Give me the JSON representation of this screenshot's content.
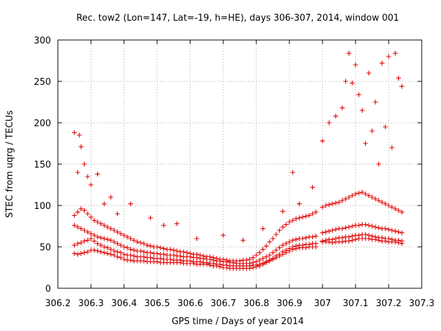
{
  "chart_data": {
    "type": "scatter",
    "title": "Rec. tow2 (Lon=147, Lat=-19, h=HE), days 306-307, 2014, window 001",
    "xlabel": "GPS time / Days of year 2014",
    "ylabel": "STEC from uqrg / TECUs",
    "xlim": [
      306.2,
      307.3
    ],
    "ylim": [
      0,
      300
    ],
    "xticks": [
      "306.2",
      "306.3",
      "306.4",
      "306.5",
      "306.6",
      "306.7",
      "306.8",
      "306.9",
      "307",
      "307.1",
      "307.2",
      "307.3"
    ],
    "yticks": [
      "0",
      "50",
      "100",
      "150",
      "200",
      "250",
      "300"
    ],
    "grid": true,
    "marker": "+",
    "color": "#e00000",
    "series": [
      {
        "x": [
          306.25,
          306.26,
          306.27,
          306.28,
          306.29,
          306.3,
          306.31,
          306.32,
          306.33,
          306.34,
          306.35,
          306.36,
          306.37,
          306.38,
          306.39,
          306.4,
          306.41,
          306.42,
          306.43,
          306.44,
          306.45,
          306.46,
          306.47,
          306.48,
          306.49,
          306.5,
          306.51,
          306.52,
          306.53,
          306.54,
          306.55,
          306.56,
          306.57,
          306.58,
          306.59,
          306.6,
          306.61,
          306.62,
          306.63,
          306.64,
          306.65,
          306.66,
          306.67,
          306.68,
          306.69,
          306.7,
          306.71,
          306.72,
          306.73,
          306.74,
          306.75,
          306.76,
          306.77,
          306.78,
          306.79,
          306.8,
          306.81,
          306.82,
          306.83,
          306.84,
          306.85,
          306.86,
          306.87,
          306.88,
          306.89,
          306.9,
          306.91,
          306.92,
          306.93,
          306.94,
          306.95,
          306.96,
          306.97,
          306.98,
          307.0,
          307.01,
          307.02,
          307.03,
          307.04,
          307.05,
          307.06,
          307.07,
          307.08,
          307.09,
          307.1,
          307.11,
          307.12,
          307.13,
          307.14,
          307.15,
          307.16,
          307.17,
          307.18,
          307.19,
          307.2,
          307.21,
          307.22,
          307.23,
          307.24
        ],
        "y": [
          42,
          41,
          42,
          43,
          44,
          46,
          46,
          45,
          44,
          43,
          42,
          41,
          40,
          38,
          37,
          35,
          34,
          34,
          33,
          33,
          33,
          33,
          32,
          32,
          32,
          32,
          31,
          31,
          31,
          31,
          31,
          31,
          31,
          30,
          30,
          30,
          30,
          29,
          29,
          29,
          29,
          28,
          27,
          27,
          26,
          25,
          25,
          24,
          24,
          24,
          24,
          24,
          24,
          24,
          25,
          26,
          27,
          29,
          31,
          33,
          35,
          37,
          39,
          41,
          43,
          45,
          47,
          48,
          49,
          49,
          49,
          50,
          50,
          50,
          56,
          56,
          56,
          55,
          56,
          56,
          56,
          57,
          57,
          58,
          59,
          60,
          60,
          60,
          60,
          59,
          59,
          58,
          57,
          57,
          56,
          56,
          56,
          55,
          54
        ]
      },
      {
        "x": [
          306.25,
          306.26,
          306.27,
          306.28,
          306.29,
          306.3,
          306.31,
          306.32,
          306.33,
          306.34,
          306.35,
          306.36,
          306.37,
          306.38,
          306.39,
          306.4,
          306.41,
          306.42,
          306.43,
          306.44,
          306.45,
          306.46,
          306.47,
          306.48,
          306.49,
          306.5,
          306.51,
          306.52,
          306.53,
          306.54,
          306.55,
          306.56,
          306.57,
          306.58,
          306.59,
          306.6,
          306.61,
          306.62,
          306.63,
          306.64,
          306.65,
          306.66,
          306.67,
          306.68,
          306.69,
          306.7,
          306.71,
          306.72,
          306.73,
          306.74,
          306.75,
          306.76,
          306.77,
          306.78,
          306.79,
          306.8,
          306.81,
          306.82,
          306.83,
          306.84,
          306.85,
          306.86,
          306.87,
          306.88,
          306.89,
          306.9,
          306.91,
          306.92,
          306.93,
          306.94,
          306.95,
          306.96,
          306.97,
          306.98,
          307.0,
          307.01,
          307.02,
          307.03,
          307.04,
          307.05,
          307.06,
          307.07,
          307.08,
          307.09,
          307.1,
          307.11,
          307.12,
          307.13,
          307.14,
          307.15,
          307.16,
          307.17,
          307.18,
          307.19,
          307.2,
          307.21,
          307.22,
          307.23,
          307.24
        ],
        "y": [
          52,
          54,
          55,
          57,
          58,
          60,
          57,
          54,
          52,
          50,
          49,
          47,
          45,
          44,
          43,
          41,
          40,
          40,
          39,
          38,
          38,
          38,
          37,
          37,
          36,
          36,
          36,
          35,
          35,
          35,
          34,
          34,
          34,
          33,
          33,
          33,
          32,
          32,
          32,
          31,
          31,
          30,
          30,
          29,
          29,
          28,
          28,
          27,
          27,
          27,
          27,
          27,
          27,
          27,
          28,
          28,
          29,
          30,
          32,
          34,
          36,
          39,
          41,
          44,
          46,
          48,
          50,
          51,
          52,
          52,
          53,
          53,
          54,
          54,
          57,
          58,
          59,
          59,
          60,
          61,
          61,
          62,
          62,
          63,
          64,
          64,
          65,
          65,
          64,
          63,
          62,
          61,
          61,
          60,
          60,
          59,
          58,
          58,
          57
        ]
      },
      {
        "x": [
          306.25,
          306.26,
          306.27,
          306.28,
          306.29,
          306.3,
          306.31,
          306.32,
          306.33,
          306.34,
          306.35,
          306.36,
          306.37,
          306.38,
          306.39,
          306.4,
          306.41,
          306.42,
          306.43,
          306.44,
          306.45,
          306.46,
          306.47,
          306.48,
          306.49,
          306.5,
          306.51,
          306.52,
          306.53,
          306.54,
          306.55,
          306.56,
          306.57,
          306.58,
          306.59,
          306.6,
          306.61,
          306.62,
          306.63,
          306.64,
          306.65,
          306.66,
          306.67,
          306.68,
          306.69,
          306.7,
          306.71,
          306.72,
          306.73,
          306.74,
          306.75,
          306.76,
          306.77,
          306.78,
          306.79,
          306.8,
          306.81,
          306.82,
          306.83,
          306.84,
          306.85,
          306.86,
          306.87,
          306.88,
          306.89,
          306.9,
          306.91,
          306.92,
          306.93,
          306.94,
          306.95,
          306.96,
          306.97,
          306.98,
          307.0,
          307.01,
          307.02,
          307.03,
          307.04,
          307.05,
          307.06,
          307.07,
          307.08,
          307.09,
          307.1,
          307.11,
          307.12,
          307.13,
          307.14,
          307.15,
          307.16,
          307.17,
          307.18,
          307.19,
          307.2,
          307.21,
          307.22,
          307.23,
          307.24
        ],
        "y": [
          76,
          74,
          72,
          70,
          68,
          66,
          64,
          62,
          61,
          60,
          59,
          58,
          56,
          54,
          52,
          50,
          49,
          47,
          46,
          45,
          45,
          44,
          43,
          43,
          42,
          42,
          41,
          41,
          40,
          40,
          40,
          39,
          39,
          38,
          38,
          38,
          37,
          37,
          36,
          36,
          35,
          35,
          34,
          33,
          33,
          32,
          32,
          31,
          31,
          30,
          30,
          30,
          30,
          30,
          31,
          32,
          34,
          36,
          38,
          40,
          43,
          46,
          49,
          52,
          54,
          56,
          58,
          59,
          60,
          60,
          61,
          62,
          62,
          63,
          67,
          68,
          69,
          70,
          71,
          72,
          72,
          73,
          74,
          75,
          76,
          76,
          77,
          77,
          76,
          75,
          74,
          73,
          72,
          72,
          71,
          70,
          69,
          68,
          67
        ]
      },
      {
        "x": [
          306.25,
          306.26,
          306.27,
          306.28,
          306.29,
          306.3,
          306.31,
          306.32,
          306.33,
          306.34,
          306.35,
          306.36,
          306.37,
          306.38,
          306.39,
          306.4,
          306.41,
          306.42,
          306.43,
          306.44,
          306.45,
          306.46,
          306.47,
          306.48,
          306.49,
          306.5,
          306.51,
          306.52,
          306.53,
          306.54,
          306.55,
          306.56,
          306.57,
          306.58,
          306.59,
          306.6,
          306.61,
          306.62,
          306.63,
          306.64,
          306.65,
          306.66,
          306.67,
          306.68,
          306.69,
          306.7,
          306.71,
          306.72,
          306.73,
          306.74,
          306.75,
          306.76,
          306.77,
          306.78,
          306.79,
          306.8,
          306.81,
          306.82,
          306.83,
          306.84,
          306.85,
          306.86,
          306.87,
          306.88,
          306.89,
          306.9,
          306.91,
          306.92,
          306.93,
          306.94,
          306.95,
          306.96,
          306.97,
          306.98,
          307.0,
          307.01,
          307.02,
          307.03,
          307.04,
          307.05,
          307.06,
          307.07,
          307.08,
          307.09,
          307.1,
          307.11,
          307.12,
          307.13,
          307.14,
          307.15,
          307.16,
          307.17,
          307.18,
          307.19,
          307.2,
          307.21,
          307.22,
          307.23,
          307.24
        ],
        "y": [
          88,
          92,
          96,
          94,
          90,
          86,
          82,
          80,
          78,
          76,
          74,
          72,
          70,
          68,
          66,
          64,
          62,
          60,
          58,
          56,
          55,
          54,
          52,
          51,
          50,
          50,
          49,
          48,
          47,
          47,
          46,
          45,
          44,
          44,
          43,
          42,
          41,
          41,
          40,
          39,
          38,
          38,
          37,
          36,
          35,
          35,
          34,
          33,
          33,
          33,
          33,
          34,
          34,
          35,
          37,
          40,
          43,
          47,
          51,
          56,
          60,
          65,
          70,
          74,
          77,
          80,
          82,
          84,
          85,
          86,
          87,
          88,
          90,
          92,
          98,
          100,
          101,
          102,
          103,
          104,
          106,
          108,
          110,
          112,
          114,
          115,
          116,
          114,
          112,
          110,
          108,
          106,
          104,
          102,
          100,
          98,
          96,
          94,
          92
        ]
      },
      {
        "x": [
          306.25,
          306.26,
          306.265,
          306.27,
          306.28,
          306.29,
          306.3,
          306.32,
          306.34,
          306.36,
          306.38,
          306.42,
          306.48,
          306.52,
          306.56,
          306.62,
          306.7,
          306.76,
          306.82,
          306.88,
          306.91,
          306.93,
          306.97,
          307.0,
          307.02,
          307.04,
          307.06,
          307.07,
          307.08,
          307.09,
          307.1,
          307.11,
          307.12,
          307.13,
          307.14,
          307.15,
          307.16,
          307.17,
          307.18,
          307.19,
          307.2,
          307.21,
          307.22,
          307.23,
          307.24
        ],
        "y": [
          188,
          140,
          185,
          171,
          150,
          135,
          125,
          138,
          102,
          110,
          90,
          102,
          85,
          76,
          78,
          60,
          64,
          58,
          72,
          93,
          140,
          102,
          122,
          178,
          200,
          208,
          218,
          250,
          284,
          248,
          270,
          234,
          215,
          175,
          260,
          190,
          225,
          150,
          272,
          195,
          280,
          170,
          284,
          254,
          244
        ]
      }
    ]
  }
}
